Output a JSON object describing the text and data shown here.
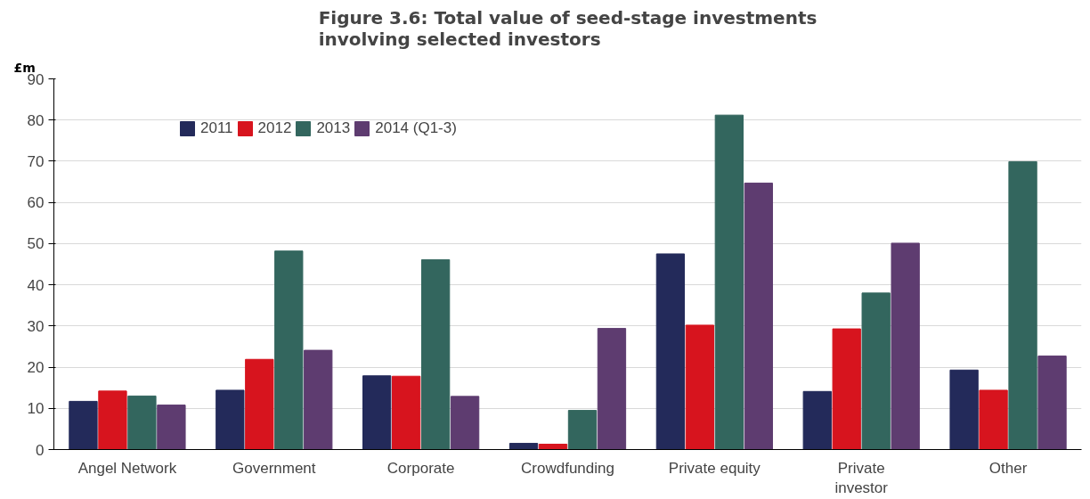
{
  "chart_data": {
    "type": "bar",
    "title": "Figure 3.6: Total value of seed-stage investments involving selected investors",
    "ylabel": "£m",
    "categories": [
      "Angel Network",
      "Government",
      "Corporate",
      "Crowdfunding",
      "Private equity",
      "Private investor",
      "Other"
    ],
    "series": [
      {
        "name": "2011",
        "color": "#232a5a",
        "values": [
          11.7,
          14.4,
          17.9,
          1.5,
          47.5,
          14.1,
          19.3
        ]
      },
      {
        "name": "2012",
        "color": "#d7141e",
        "values": [
          14.2,
          21.9,
          17.8,
          1.3,
          30.2,
          29.3,
          14.4
        ]
      },
      {
        "name": "2013",
        "color": "#33665e",
        "values": [
          13.0,
          48.2,
          46.1,
          9.5,
          81.2,
          38.0,
          69.9
        ]
      },
      {
        "name": "2014 (Q1-3)",
        "color": "#5e3c70",
        "values": [
          10.8,
          24.1,
          12.9,
          29.4,
          64.7,
          50.1,
          22.7
        ]
      }
    ],
    "ylim": [
      0,
      90
    ],
    "yticks": [
      0,
      10,
      20,
      30,
      40,
      50,
      60,
      70,
      80,
      90
    ],
    "grid": "y",
    "legend": "top left"
  }
}
